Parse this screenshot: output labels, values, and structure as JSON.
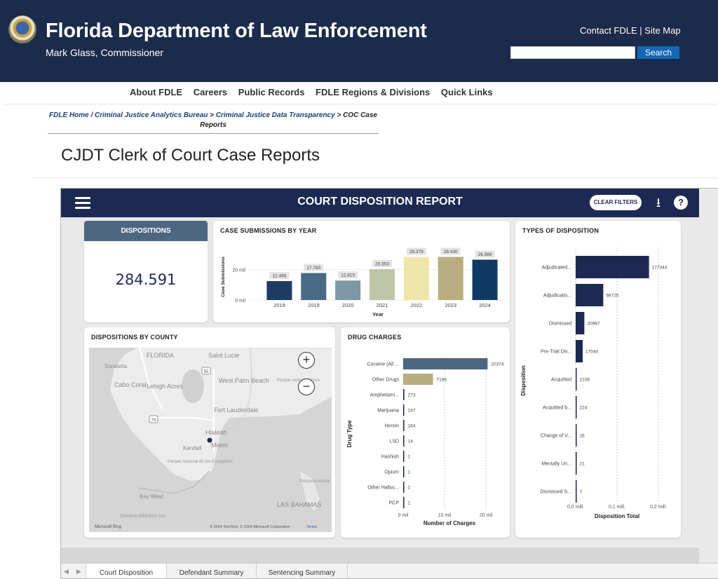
{
  "header": {
    "title": "Florida Department of Law Enforcement",
    "subtitle": "Mark Glass, Commissioner",
    "contact_link": "Contact FDLE",
    "sitemap_link": "| Site Map",
    "search_placeholder": "",
    "search_button": "Search"
  },
  "nav": {
    "items": [
      "About FDLE",
      "Careers",
      "Public Records",
      "FDLE Regions & Divisions",
      "Quick Links"
    ]
  },
  "breadcrumb": {
    "home": "FDLE Home",
    "sep1": " / ",
    "bureau": "Criminal Justice Analytics Bureau",
    "sep2": " > ",
    "transparency": "Criminal Justice Data Transparency",
    "sep3": " > ",
    "current": "COC Case Reports"
  },
  "page_title": "CJDT Clerk of Court Case Reports",
  "report": {
    "title": "COURT DISPOSITION REPORT",
    "clear_filters": "CLEAR FILTERS",
    "help": "?",
    "download": "⭳"
  },
  "kpi": {
    "label": "DISPOSITIONS",
    "value": "284.591"
  },
  "map": {
    "title": "DISPOSITIONS BY COUNTY",
    "labels": [
      "Sarasota",
      "FLORIDA",
      "Saint Lucie",
      "West Palm Beach",
      "Cabo Coral",
      "Lehigh Acres",
      "Parque nacional Shore",
      "Fort Lauderdale",
      "Hialeah",
      "Miami",
      "Kendall",
      "Parque nacional de los Everglades",
      "Key West",
      "Oceano Atlantico Sur",
      "LAS BAHAMAS",
      "Parque nacional"
    ],
    "highway_95": "95",
    "highway_75": "75",
    "attribution": "© 2024 TomTom, © 2024 Microsoft Corporation",
    "terms": "Terms",
    "bing": "Microsoft Bing",
    "zoom_in": "+",
    "zoom_out": "−"
  },
  "tabs": {
    "items": [
      "Court Disposition",
      "Defendant Summary",
      "Sentencing Summary"
    ],
    "prev": "◀",
    "next": "▶"
  },
  "chart_data": [
    {
      "id": "submissions",
      "type": "bar",
      "title": "CASE SUBMISSIONS BY YEAR",
      "xlabel": "Year",
      "ylabel": "Case Submissions",
      "categories": [
        "2018",
        "2019",
        "2020",
        "2021",
        "2022",
        "2023",
        "2024"
      ],
      "values": [
        12469,
        17783,
        12815,
        20353,
        28379,
        28430,
        26566
      ],
      "data_labels": [
        "12.469",
        "17.783",
        "12.815",
        "20.353",
        "28.379",
        "28.430",
        "26.566"
      ],
      "colors": [
        "#1f3b63",
        "#4a6a85",
        "#7e97a4",
        "#bfc6a8",
        "#f0e5a8",
        "#b9ad7f",
        "#0f3a66"
      ],
      "yticks": [
        "0 mil",
        "20 mil"
      ],
      "ylim": [
        0,
        30000
      ]
    },
    {
      "id": "types",
      "type": "bar",
      "orientation": "horizontal",
      "title": "TYPES OF DISPOSITION",
      "xlabel": "Disposition Total",
      "ylabel": "Disposition",
      "categories": [
        "Adjudicated...",
        "Adjudicatio...",
        "Dismissed",
        "Pre-Trial Div...",
        "Acquitted",
        "Acquitted b...",
        "Change of V...",
        "Mentally Un...",
        "Dismissed S..."
      ],
      "values": [
        177343,
        66725,
        20967,
        17040,
        2236,
        224,
        28,
        21,
        7
      ],
      "data_labels": [
        "177343",
        "66725",
        "20967",
        "17040",
        "2236",
        "224",
        "28",
        "21",
        "7"
      ],
      "color": "#1c2a53",
      "xticks": [
        "0,0 mill.",
        "0,1 mill.",
        "0,2 mill."
      ],
      "xlim": [
        0,
        200000
      ]
    },
    {
      "id": "drugs",
      "type": "bar",
      "orientation": "horizontal",
      "title": "DRUG CHARGES",
      "xlabel": "Number of Charges",
      "ylabel": "Drug Type",
      "categories": [
        "Cocaine (All ...",
        "Other Drugs",
        "Amphetami...",
        "Marijuana",
        "Heroin",
        "LSD",
        "Hashish",
        "Opium",
        "Other Halluc...",
        "PCP"
      ],
      "values": [
        20374,
        7198,
        273,
        247,
        164,
        14,
        1,
        1,
        1,
        1
      ],
      "data_labels": [
        "20374",
        "7198",
        "273",
        "247",
        "164",
        "14",
        "1",
        "1",
        "1",
        "1"
      ],
      "colors": [
        "#4e6780",
        "#b9ad7f",
        "#1c2a53",
        "#1c2a53",
        "#1c2a53",
        "#1c2a53",
        "#1c2a53",
        "#1c2a53",
        "#1c2a53",
        "#1c2a53"
      ],
      "xticks": [
        "0 mil",
        "10 mil",
        "20 mil"
      ],
      "xlim": [
        0,
        22000
      ]
    }
  ]
}
